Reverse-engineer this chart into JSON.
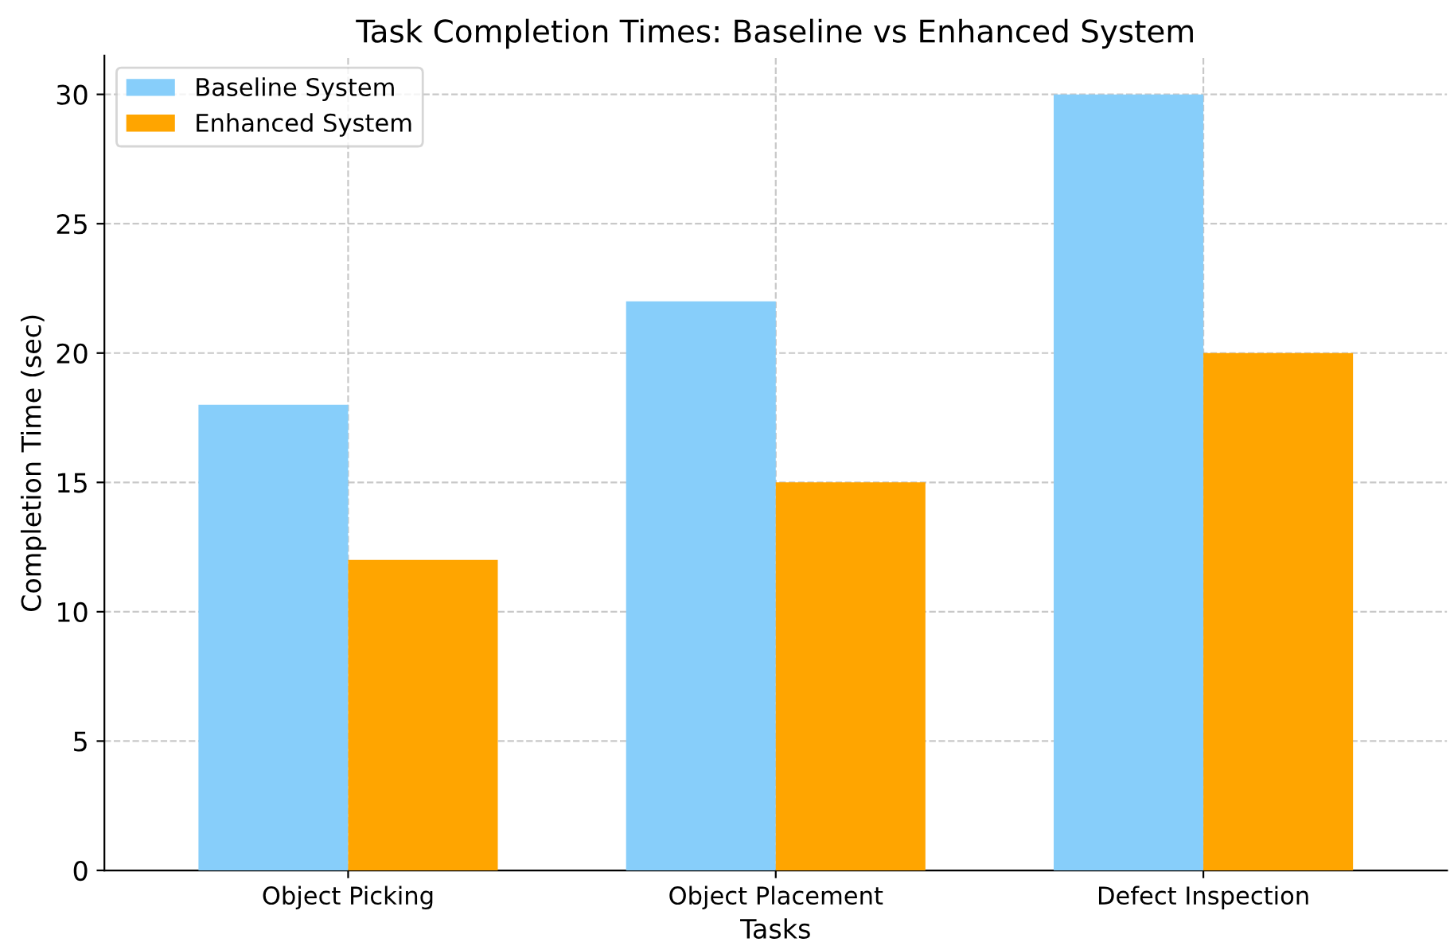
{
  "chart_data": {
    "type": "bar",
    "title": "Task Completion Times: Baseline vs Enhanced System",
    "xlabel": "Tasks",
    "ylabel": "Completion Time (sec)",
    "categories": [
      "Object Picking",
      "Object Placement",
      "Defect Inspection"
    ],
    "series": [
      {
        "name": "Baseline System",
        "color": "#87cefa",
        "values": [
          18,
          22,
          30
        ]
      },
      {
        "name": "Enhanced System",
        "color": "#ffa500",
        "values": [
          12,
          15,
          20
        ]
      }
    ],
    "ylim": [
      0,
      31.5
    ],
    "yticks": [
      0,
      5,
      10,
      15,
      20,
      25,
      30
    ],
    "grid": true,
    "legend": "top left"
  }
}
